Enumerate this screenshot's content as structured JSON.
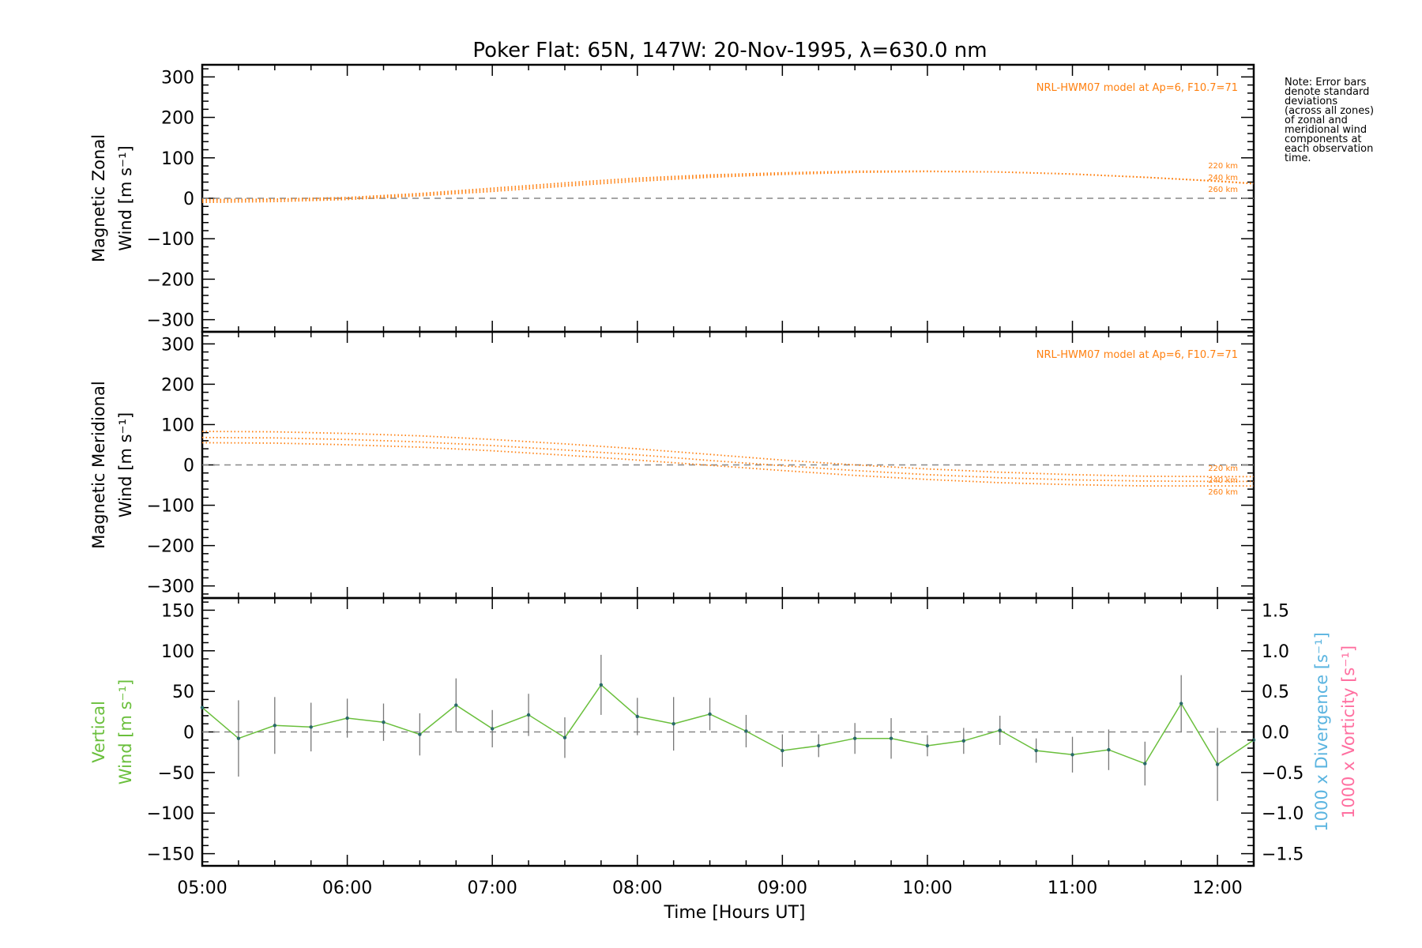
{
  "title": "Poker Flat: 65N, 147W: 20-Nov-1995, λ=630.0 nm",
  "note_lines": [
    "Note: Error bars",
    "denote standard",
    "deviations",
    "(across all zones)",
    "of zonal and",
    "meridional wind",
    "components at",
    "each observation",
    "time."
  ],
  "xlabel": "Time [Hours UT]",
  "colors": {
    "model": "#ff7f0e",
    "vertical": "#6abf3c",
    "divergence": "#5ab4e0",
    "vorticity": "#ff6fa0",
    "zero_line": "#888888",
    "axes": "#000000"
  },
  "chart_data": [
    {
      "type": "line",
      "panel": "zonal",
      "ylabel_lines": [
        "Magnetic Zonal",
        "Wind [m s⁻¹]"
      ],
      "model_label": "NRL-HWM07 model at Ap=6, F10.7=71",
      "xlim": [
        5.0,
        12.25
      ],
      "ylim": [
        -330,
        330
      ],
      "yticks": [
        -300,
        -200,
        -100,
        0,
        100,
        200,
        300
      ],
      "ytick_labels": [
        "−300",
        "−200",
        "−100",
        "0",
        "100",
        "200",
        "300"
      ],
      "x": [
        5.0,
        5.5,
        6.0,
        6.5,
        7.0,
        7.5,
        8.0,
        8.5,
        9.0,
        9.5,
        10.0,
        10.5,
        11.0,
        11.5,
        12.0,
        12.25
      ],
      "series": [
        {
          "name": "220 km",
          "values": [
            -3,
            -2,
            2,
            12,
            25,
            38,
            50,
            58,
            63,
            67,
            67,
            65,
            60,
            52,
            42,
            36
          ]
        },
        {
          "name": "240 km",
          "values": [
            -6,
            -4,
            0,
            9,
            21,
            34,
            46,
            55,
            61,
            66,
            67,
            65,
            60,
            52,
            42,
            36
          ]
        },
        {
          "name": "260 km",
          "values": [
            -10,
            -8,
            -3,
            6,
            17,
            30,
            42,
            52,
            59,
            64,
            66,
            65,
            60,
            52,
            43,
            37
          ]
        }
      ]
    },
    {
      "type": "line",
      "panel": "meridional",
      "ylabel_lines": [
        "Magnetic Meridional",
        "Wind [m s⁻¹]"
      ],
      "model_label": "NRL-HWM07 model at Ap=6, F10.7=71",
      "xlim": [
        5.0,
        12.25
      ],
      "ylim": [
        -330,
        330
      ],
      "yticks": [
        -300,
        -200,
        -100,
        0,
        100,
        200,
        300
      ],
      "ytick_labels": [
        "−300",
        "−200",
        "−100",
        "0",
        "100",
        "200",
        "300"
      ],
      "x": [
        5.0,
        5.5,
        6.0,
        6.5,
        7.0,
        7.5,
        8.0,
        8.5,
        9.0,
        9.5,
        10.0,
        10.5,
        11.0,
        11.5,
        12.0,
        12.25
      ],
      "series": [
        {
          "name": "220 km",
          "values": [
            83,
            82,
            78,
            72,
            63,
            52,
            40,
            26,
            12,
            0,
            -10,
            -18,
            -24,
            -28,
            -29,
            -29
          ]
        },
        {
          "name": "240 km",
          "values": [
            68,
            67,
            63,
            57,
            48,
            37,
            25,
            11,
            -2,
            -14,
            -24,
            -32,
            -37,
            -40,
            -41,
            -41
          ]
        },
        {
          "name": "260 km",
          "values": [
            55,
            54,
            50,
            44,
            35,
            24,
            12,
            -1,
            -14,
            -26,
            -36,
            -44,
            -49,
            -52,
            -52,
            -52
          ]
        }
      ]
    },
    {
      "type": "line",
      "panel": "vertical",
      "ylabel_lines": [
        "Vertical",
        "Wind [m s⁻¹]"
      ],
      "xlim": [
        5.0,
        12.25
      ],
      "ylim": [
        -165,
        165
      ],
      "yticks": [
        -150,
        -100,
        -50,
        0,
        50,
        100,
        150
      ],
      "ytick_labels": [
        "−150",
        "−100",
        "−50",
        "0",
        "50",
        "100",
        "150"
      ],
      "xticks": [
        5,
        6,
        7,
        8,
        9,
        10,
        11,
        12
      ],
      "xtick_labels": [
        "05:00",
        "06:00",
        "07:00",
        "08:00",
        "09:00",
        "10:00",
        "11:00",
        "12:00"
      ],
      "right_axis": {
        "ylim": [
          -1.65,
          1.65
        ],
        "yticks": [
          -1.5,
          -1.0,
          -0.5,
          0.0,
          0.5,
          1.0,
          1.5
        ],
        "ytick_labels": [
          "−1.5",
          "−1.0",
          "−0.5",
          "0.0",
          "0.5",
          "1.0",
          "1.5"
        ],
        "label_divergence": "1000 x Divergence [s⁻¹]",
        "label_vorticity": "1000 x Vorticity [s⁻¹]"
      },
      "series": [
        {
          "x": [
            5.0,
            5.25,
            5.5,
            5.75,
            6.0,
            6.25,
            6.5,
            6.75,
            7.0,
            7.25,
            7.5,
            7.75,
            8.0,
            8.25,
            8.5,
            8.75,
            9.0,
            9.25,
            9.5,
            9.75,
            10.0,
            10.25,
            10.5,
            10.75,
            11.0,
            11.25,
            11.5,
            11.75,
            12.0,
            12.25
          ],
          "values": [
            30,
            -8,
            8,
            6,
            17,
            12,
            -3,
            33,
            4,
            21,
            -7,
            58,
            19,
            10,
            22,
            1,
            -23,
            -17,
            -8,
            -8,
            -17,
            -11,
            2,
            -23,
            -28,
            -22,
            -39,
            35,
            -40,
            -10
          ],
          "errors": [
            0,
            47,
            35,
            30,
            24,
            23,
            26,
            33,
            23,
            26,
            25,
            37,
            23,
            33,
            20,
            20,
            20,
            14,
            19,
            25,
            13,
            16,
            18,
            15,
            22,
            25,
            27,
            35,
            45,
            0
          ]
        }
      ]
    }
  ]
}
